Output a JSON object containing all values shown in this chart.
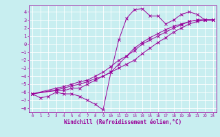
{
  "xlabel": "Windchill (Refroidissement éolien,°C)",
  "background_color": "#c8eef0",
  "grid_color": "#ffffff",
  "line_color": "#990099",
  "xlim": [
    -0.5,
    23.5
  ],
  "ylim": [
    -8.5,
    4.8
  ],
  "xticks": [
    0,
    1,
    2,
    3,
    4,
    5,
    6,
    7,
    8,
    9,
    10,
    11,
    12,
    13,
    14,
    15,
    16,
    17,
    18,
    19,
    20,
    21,
    22,
    23
  ],
  "yticks": [
    4,
    3,
    2,
    1,
    0,
    -1,
    -2,
    -3,
    -4,
    -5,
    -6,
    -7,
    -8
  ],
  "line1_x": [
    0,
    1,
    2,
    3,
    4,
    5,
    6,
    7,
    8,
    9,
    10,
    11,
    12,
    13,
    14,
    15,
    16,
    17,
    18,
    19,
    20,
    21,
    22,
    23
  ],
  "line1_y": [
    -6.2,
    -6.7,
    -6.5,
    -6.0,
    -6.2,
    -6.2,
    -6.5,
    -7.0,
    -7.5,
    -8.2,
    -3.5,
    0.5,
    3.2,
    4.3,
    4.4,
    3.5,
    3.5,
    2.5,
    3.0,
    3.7,
    4.0,
    3.7,
    3.0,
    3.0
  ],
  "line2_x": [
    0,
    3,
    4,
    5,
    6,
    7,
    8,
    9,
    10,
    11,
    12,
    13,
    14,
    15,
    16,
    17,
    18,
    19,
    20,
    21,
    22,
    23
  ],
  "line2_y": [
    -6.2,
    -5.8,
    -5.8,
    -5.5,
    -5.5,
    -5.0,
    -4.5,
    -4.0,
    -3.5,
    -2.5,
    -1.5,
    -0.5,
    0.2,
    0.8,
    1.3,
    1.8,
    2.2,
    2.5,
    2.8,
    3.0,
    3.0,
    3.0
  ],
  "line3_x": [
    0,
    3,
    4,
    5,
    6,
    7,
    8,
    9,
    10,
    11,
    12,
    13,
    14,
    15,
    16,
    17,
    18,
    19,
    20,
    21,
    22,
    23
  ],
  "line3_y": [
    -6.2,
    -5.5,
    -5.3,
    -5.0,
    -4.7,
    -4.5,
    -4.0,
    -3.5,
    -2.8,
    -2.0,
    -1.5,
    -0.8,
    -0.0,
    0.5,
    1.0,
    1.5,
    2.0,
    2.4,
    2.8,
    3.0,
    3.0,
    3.0
  ],
  "line4_x": [
    0,
    3,
    4,
    5,
    6,
    7,
    8,
    9,
    10,
    11,
    12,
    13,
    14,
    15,
    16,
    17,
    18,
    19,
    20,
    21,
    22,
    23
  ],
  "line4_y": [
    -6.2,
    -5.7,
    -5.5,
    -5.2,
    -5.0,
    -4.7,
    -4.3,
    -4.0,
    -3.5,
    -3.0,
    -2.5,
    -2.0,
    -1.2,
    -0.5,
    0.2,
    0.8,
    1.5,
    2.0,
    2.5,
    2.8,
    3.0,
    3.0
  ]
}
